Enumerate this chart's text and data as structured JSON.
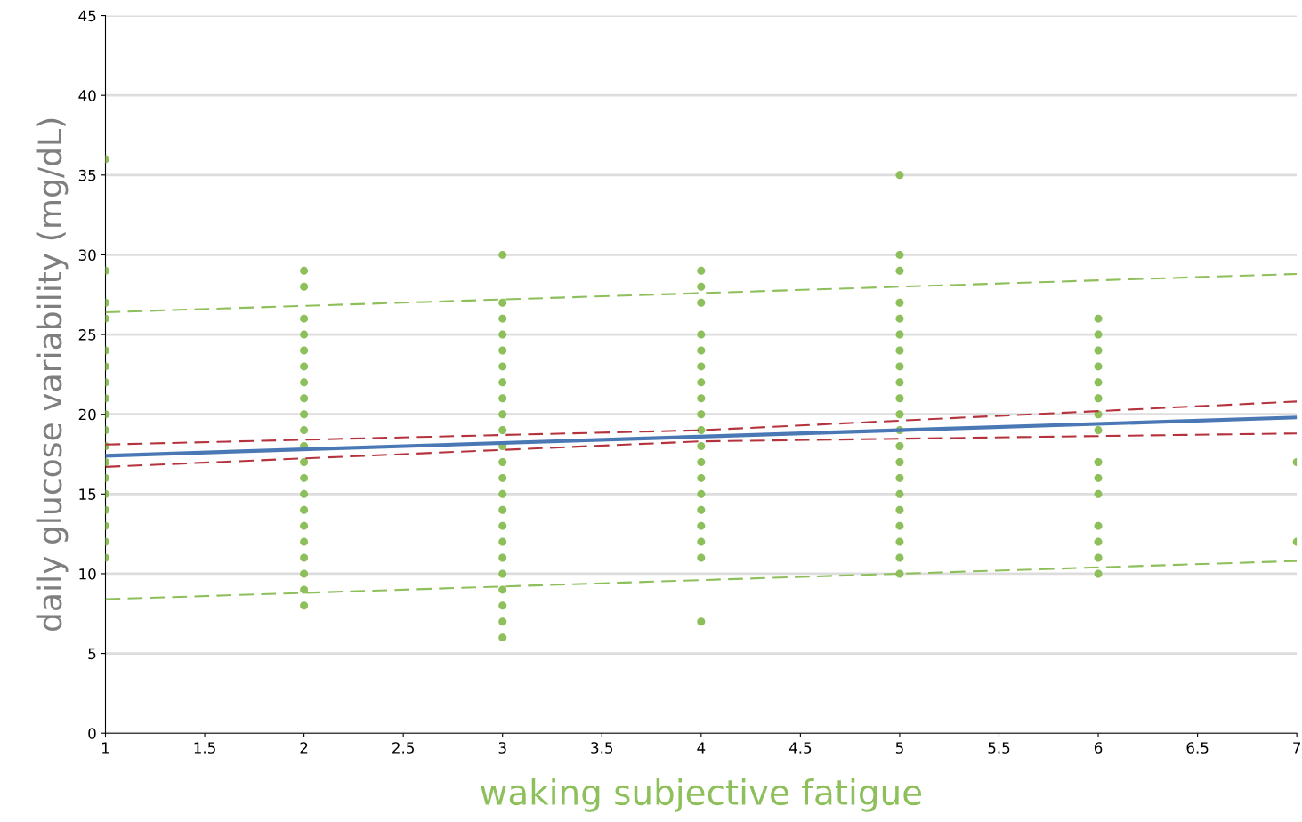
{
  "chart_data": {
    "type": "scatter",
    "xlabel": "waking subjective fatigue",
    "ylabel": "daily glucose variability (mg/dL)",
    "xlim": [
      1,
      7
    ],
    "ylim": [
      0,
      45
    ],
    "xticks": [
      1,
      1.5,
      2,
      2.5,
      3,
      3.5,
      4,
      4.5,
      5,
      5.5,
      6,
      6.5,
      7
    ],
    "yticks": [
      0,
      5,
      10,
      15,
      20,
      25,
      30,
      35,
      40,
      45
    ],
    "grid": "y",
    "legend": false,
    "series": [
      {
        "marker": "circle",
        "color": "#8dbf5a",
        "x": [
          1,
          1,
          1,
          1,
          1,
          1,
          1,
          1,
          1,
          1,
          1,
          1,
          1,
          1,
          1,
          1,
          1,
          1,
          2,
          2,
          2,
          2,
          2,
          2,
          2,
          2,
          2,
          2,
          2,
          2,
          2,
          2,
          2,
          2,
          2,
          2,
          2,
          2,
          2,
          3,
          3,
          3,
          3,
          3,
          3,
          3,
          3,
          3,
          3,
          3,
          3,
          3,
          3,
          3,
          3,
          3,
          3,
          3,
          3,
          3,
          3,
          3,
          4,
          4,
          4,
          4,
          4,
          4,
          4,
          4,
          4,
          4,
          4,
          4,
          4,
          4,
          4,
          4,
          4,
          4,
          4,
          5,
          5,
          5,
          5,
          5,
          5,
          5,
          5,
          5,
          5,
          5,
          5,
          5,
          5,
          5,
          5,
          5,
          5,
          5,
          5,
          5,
          6,
          6,
          6,
          6,
          6,
          6,
          6,
          6,
          6,
          6,
          6,
          6,
          6,
          6,
          6,
          7,
          7
        ],
        "values": [
          36,
          29,
          27,
          26,
          24,
          23,
          22,
          21,
          20,
          19,
          18,
          17,
          16,
          15,
          14,
          13,
          12,
          11,
          29,
          28,
          26,
          25,
          24,
          23,
          22,
          21,
          20,
          19,
          18,
          17,
          16,
          15,
          14,
          13,
          12,
          11,
          10,
          9,
          8,
          30,
          27,
          26,
          25,
          24,
          23,
          22,
          21,
          20,
          19,
          18,
          17,
          16,
          15,
          14,
          13,
          12,
          11,
          10,
          9,
          8,
          7,
          6,
          29,
          28,
          27,
          25,
          24,
          23,
          22,
          21,
          20,
          19,
          18,
          17,
          16,
          15,
          14,
          13,
          12,
          11,
          7,
          35,
          30,
          29,
          27,
          26,
          25,
          24,
          23,
          22,
          21,
          20,
          19,
          18,
          17,
          16,
          15,
          14,
          13,
          12,
          11,
          10,
          26,
          25,
          24,
          23,
          22,
          21,
          20,
          19,
          17,
          16,
          15,
          13,
          12,
          11,
          10,
          17,
          12
        ]
      },
      {
        "type": "line",
        "line_style": "solid",
        "color": "#4a78b5",
        "x": [
          1,
          7
        ],
        "values": [
          17.4,
          19.8
        ]
      },
      {
        "type": "line",
        "line_style": "dashed",
        "color": "#b5333d",
        "x": [
          1,
          4,
          7
        ],
        "values": [
          18.1,
          19.0,
          20.8
        ]
      },
      {
        "type": "line",
        "line_style": "dashed",
        "color": "#b5333d",
        "x": [
          1,
          4,
          7
        ],
        "values": [
          16.7,
          18.3,
          18.8
        ]
      },
      {
        "type": "line",
        "line_style": "dashed",
        "color": "#8dbf5a",
        "x": [
          1,
          7
        ],
        "values": [
          26.4,
          28.8
        ]
      },
      {
        "type": "line",
        "line_style": "dashed",
        "color": "#8dbf5a",
        "x": [
          1,
          7
        ],
        "values": [
          8.4,
          10.8
        ]
      }
    ]
  }
}
